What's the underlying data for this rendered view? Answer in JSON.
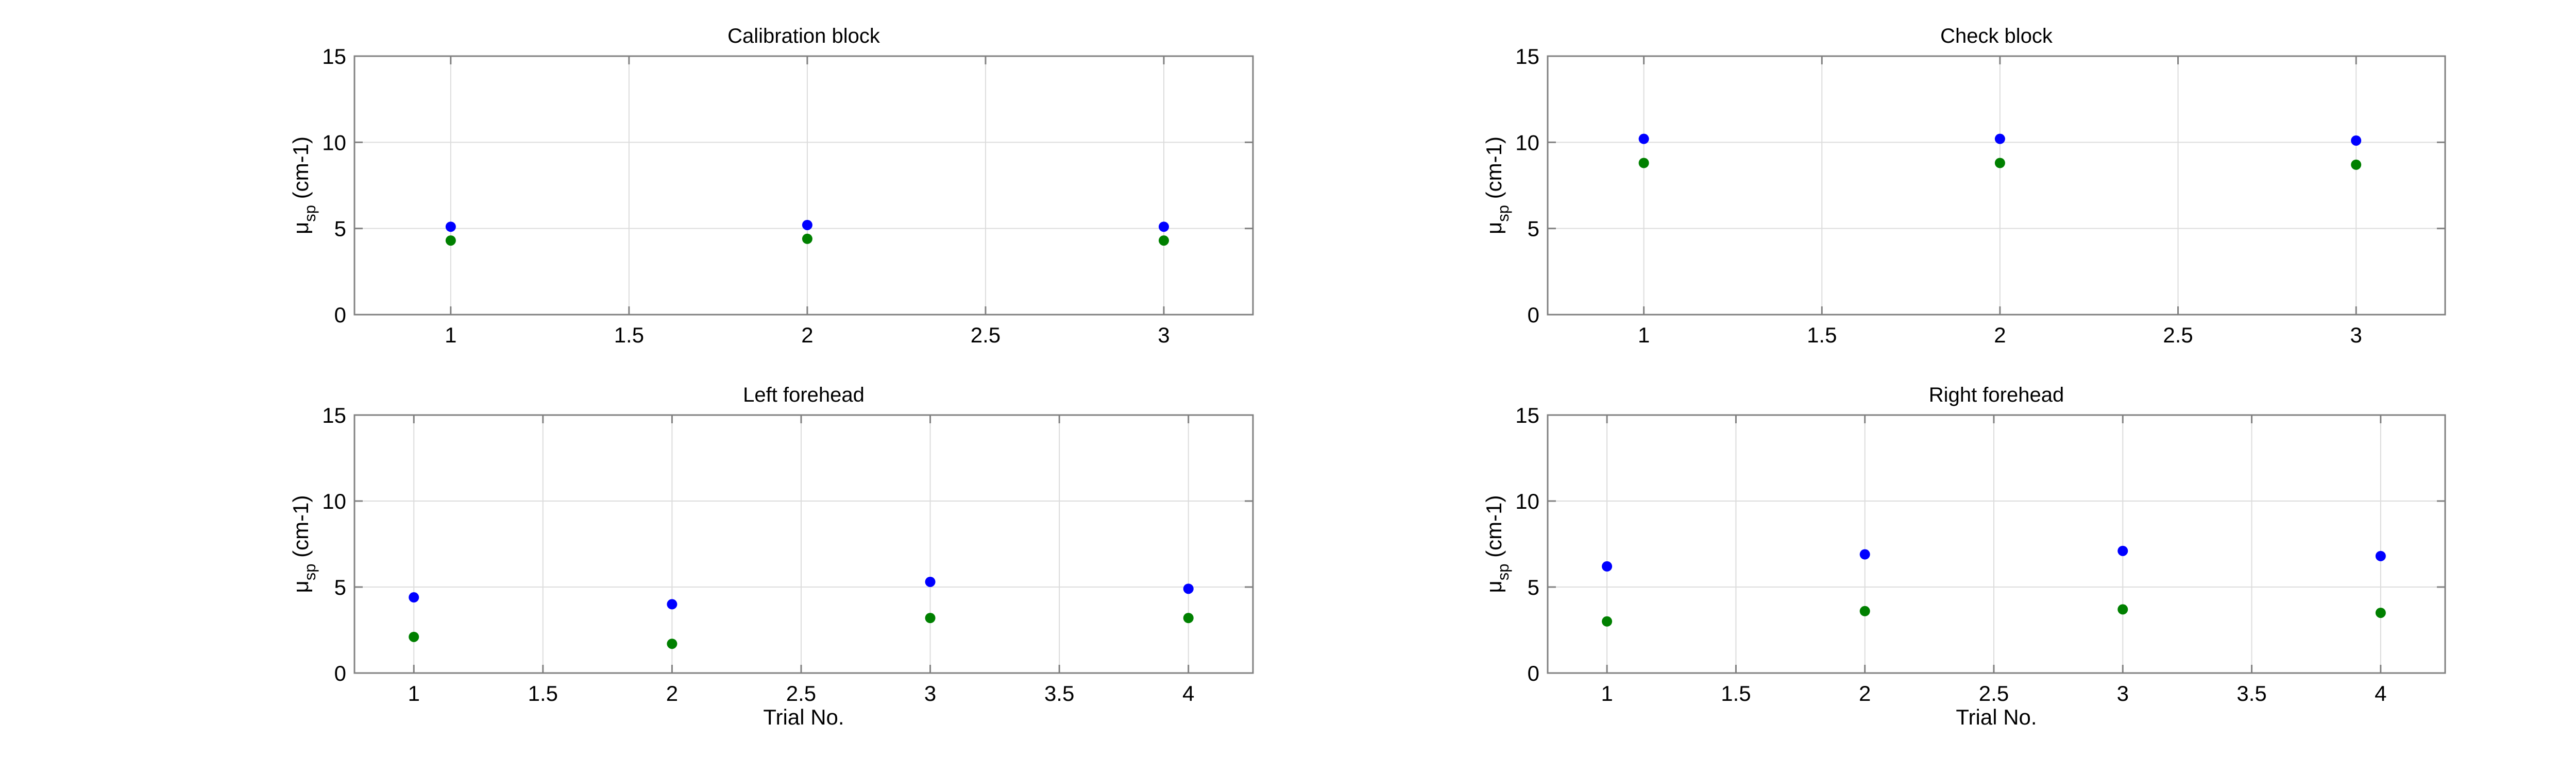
{
  "colors": {
    "series_blue": "#0000ff",
    "series_green": "#008000",
    "grid": "#dcdcdc",
    "axis": "#808080"
  },
  "chart_data": [
    {
      "type": "scatter",
      "title": "Calibration block",
      "xlabel": "",
      "ylabel_main": "μ",
      "ylabel_sub": "sp",
      "ylabel_unit": " (cm-1)",
      "xlim": [
        0.73,
        3.25
      ],
      "ylim": [
        0,
        15
      ],
      "xticks": [
        1,
        1.5,
        2,
        2.5,
        3
      ],
      "xtick_labels": [
        "1",
        "1.5",
        "2",
        "2.5",
        "3"
      ],
      "yticks": [
        0,
        5,
        10,
        15
      ],
      "ytick_labels": [
        "0",
        "5",
        "10",
        "15"
      ],
      "grid": true,
      "series": [
        {
          "color": "#0000ff",
          "x": [
            1,
            2,
            3
          ],
          "y": [
            5.1,
            5.2,
            5.1
          ]
        },
        {
          "color": "#008000",
          "x": [
            1,
            2,
            3
          ],
          "y": [
            4.3,
            4.4,
            4.3
          ]
        }
      ]
    },
    {
      "type": "scatter",
      "title": "Check block",
      "xlabel": "",
      "ylabel_main": "μ",
      "ylabel_sub": "sp",
      "ylabel_unit": " (cm-1)",
      "xlim": [
        0.73,
        3.25
      ],
      "ylim": [
        0,
        15
      ],
      "xticks": [
        1,
        1.5,
        2,
        2.5,
        3
      ],
      "xtick_labels": [
        "1",
        "1.5",
        "2",
        "2.5",
        "3"
      ],
      "yticks": [
        0,
        5,
        10,
        15
      ],
      "ytick_labels": [
        "0",
        "5",
        "10",
        "15"
      ],
      "grid": true,
      "series": [
        {
          "color": "#0000ff",
          "x": [
            1,
            2,
            3
          ],
          "y": [
            10.2,
            10.2,
            10.1
          ]
        },
        {
          "color": "#008000",
          "x": [
            1,
            2,
            3
          ],
          "y": [
            8.8,
            8.8,
            8.7
          ]
        }
      ]
    },
    {
      "type": "scatter",
      "title": "Left forehead",
      "xlabel": "Trial No.",
      "ylabel_main": "μ",
      "ylabel_sub": "sp",
      "ylabel_unit": " (cm-1)",
      "xlim": [
        0.77,
        4.25
      ],
      "ylim": [
        0,
        15
      ],
      "xticks": [
        1,
        1.5,
        2,
        2.5,
        3,
        3.5,
        4
      ],
      "xtick_labels": [
        "1",
        "1.5",
        "2",
        "2.5",
        "3",
        "3.5",
        "4"
      ],
      "yticks": [
        0,
        5,
        10,
        15
      ],
      "ytick_labels": [
        "0",
        "5",
        "10",
        "15"
      ],
      "grid": true,
      "series": [
        {
          "color": "#0000ff",
          "x": [
            1,
            2,
            3,
            4
          ],
          "y": [
            4.4,
            4.0,
            5.3,
            4.9
          ]
        },
        {
          "color": "#008000",
          "x": [
            1,
            2,
            3,
            4
          ],
          "y": [
            2.1,
            1.7,
            3.2,
            3.2
          ]
        }
      ]
    },
    {
      "type": "scatter",
      "title": "Right forehead",
      "xlabel": "Trial No.",
      "ylabel_main": "μ",
      "ylabel_sub": "sp",
      "ylabel_unit": " (cm-1)",
      "xlim": [
        0.77,
        4.25
      ],
      "ylim": [
        0,
        15
      ],
      "xticks": [
        1,
        1.5,
        2,
        2.5,
        3,
        3.5,
        4
      ],
      "xtick_labels": [
        "1",
        "1.5",
        "2",
        "2.5",
        "3",
        "3.5",
        "4"
      ],
      "yticks": [
        0,
        5,
        10,
        15
      ],
      "ytick_labels": [
        "0",
        "5",
        "10",
        "15"
      ],
      "grid": true,
      "series": [
        {
          "color": "#0000ff",
          "x": [
            1,
            2,
            3,
            4
          ],
          "y": [
            6.2,
            6.9,
            7.1,
            6.8
          ]
        },
        {
          "color": "#008000",
          "x": [
            1,
            2,
            3,
            4
          ],
          "y": [
            3.0,
            3.6,
            3.7,
            3.5
          ]
        }
      ]
    }
  ]
}
